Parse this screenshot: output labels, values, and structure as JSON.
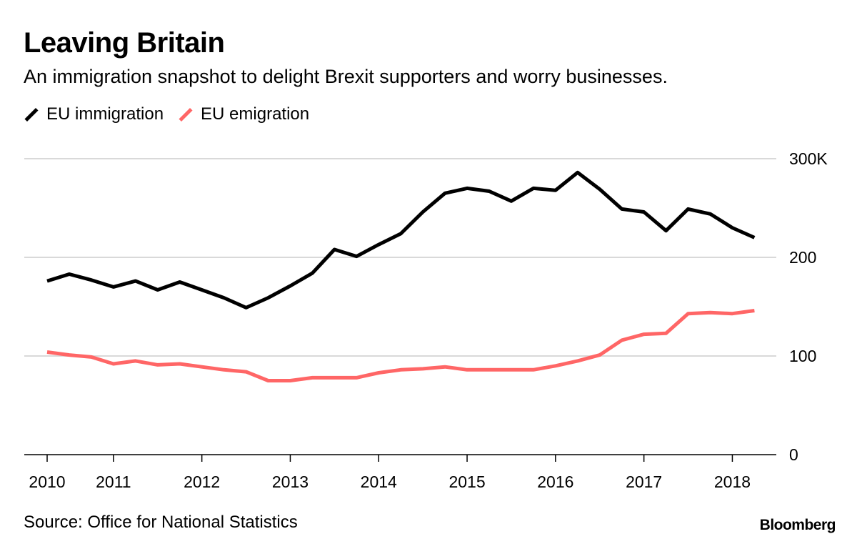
{
  "chart_data": {
    "type": "line",
    "title": "Leaving Britain",
    "subtitle": "An immigration snapshot to delight Brexit supporters and worry businesses.",
    "xlabel": "",
    "ylabel": "",
    "ylim": [
      0,
      300
    ],
    "grid": true,
    "legend_placement": "top-left",
    "y_ticks": [
      {
        "value": 0,
        "label": "0"
      },
      {
        "value": 100,
        "label": "100"
      },
      {
        "value": 200,
        "label": "200"
      },
      {
        "value": 300,
        "label": "300K"
      }
    ],
    "x_ticks": [
      {
        "value": 2010.25,
        "label": "2010"
      },
      {
        "value": 2011,
        "label": "2011"
      },
      {
        "value": 2012,
        "label": "2012"
      },
      {
        "value": 2013,
        "label": "2013"
      },
      {
        "value": 2014,
        "label": "2014"
      },
      {
        "value": 2015,
        "label": "2015"
      },
      {
        "value": 2016,
        "label": "2016"
      },
      {
        "value": 2017,
        "label": "2017"
      },
      {
        "value": 2018,
        "label": "2018"
      }
    ],
    "x_start": 2010.25,
    "x_step": 0.25,
    "series": [
      {
        "name": "EU immigration",
        "color": "#000000",
        "values": [
          176,
          183,
          177,
          170,
          176,
          167,
          175,
          167,
          159,
          149,
          159,
          171,
          184,
          208,
          201,
          213,
          224,
          246,
          265,
          270,
          267,
          257,
          270,
          268,
          286,
          269,
          249,
          246,
          227,
          249,
          244,
          230,
          220
        ]
      },
      {
        "name": "EU emigration",
        "color": "#ff6666",
        "values": [
          104,
          101,
          99,
          92,
          95,
          91,
          92,
          89,
          86,
          84,
          75,
          75,
          78,
          78,
          78,
          83,
          86,
          87,
          89,
          86,
          86,
          86,
          86,
          90,
          95,
          101,
          116,
          122,
          123,
          143,
          144,
          143,
          146
        ]
      }
    ]
  },
  "source": "Source: Office for National Statistics",
  "logo": "Bloomberg"
}
